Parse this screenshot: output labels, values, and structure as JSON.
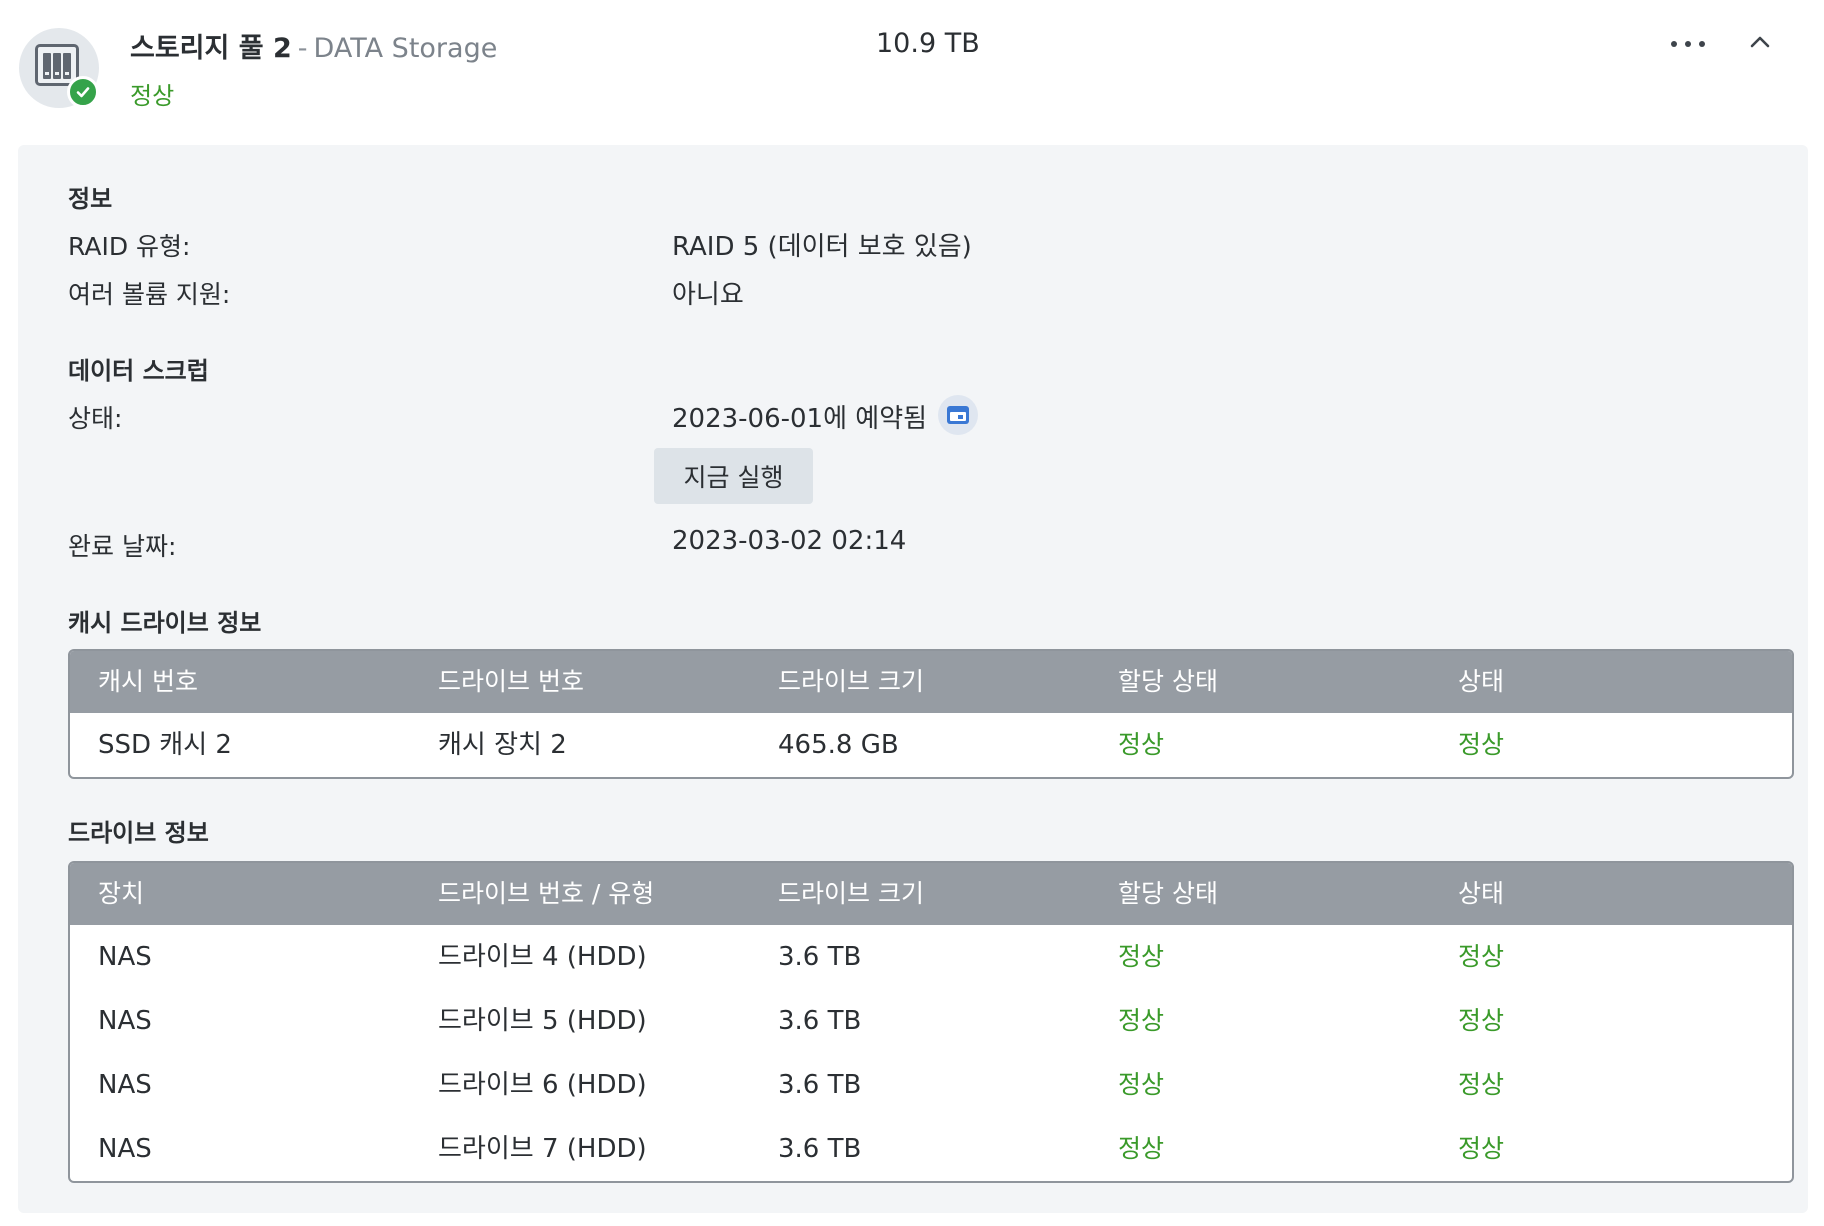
{
  "pool": {
    "name": "스토리지 풀 2",
    "separator": "-",
    "description": "DATA Storage",
    "status": "정상",
    "size": "10.9 TB",
    "icon": "nas-storage-icon",
    "status_icon": "check-circle-icon",
    "status_color": "#3a9a2a"
  },
  "info": {
    "heading": "정보",
    "raid_label": "RAID 유형:",
    "raid_value": "RAID 5 (데이터 보호 있음)",
    "multi_volume_label": "여러 볼륨 지원:",
    "multi_volume_value": "아니요"
  },
  "scrub": {
    "heading": "데이터 스크럽",
    "status_label": "상태:",
    "status_value": "2023-06-01에 예약됨",
    "run_now_label": "지금 실행",
    "completed_label": "완료 날짜:",
    "completed_value": "2023-03-02 02:14"
  },
  "cache_table": {
    "heading": "캐시 드라이브 정보",
    "columns": [
      "캐시 번호",
      "드라이브 번호",
      "드라이브 크기",
      "할당 상태",
      "상태"
    ],
    "rows": [
      [
        "SSD 캐시 2",
        "캐시 장치 2",
        "465.8 GB",
        "정상",
        "정상"
      ]
    ]
  },
  "drive_table": {
    "heading": "드라이브 정보",
    "columns": [
      "장치",
      "드라이브 번호 / 유형",
      "드라이브 크기",
      "할당 상태",
      "상태"
    ],
    "rows": [
      [
        "NAS",
        "드라이브 4 (HDD)",
        "3.6 TB",
        "정상",
        "정상"
      ],
      [
        "NAS",
        "드라이브 5 (HDD)",
        "3.6 TB",
        "정상",
        "정상"
      ],
      [
        "NAS",
        "드라이브 6 (HDD)",
        "3.6 TB",
        "정상",
        "정상"
      ],
      [
        "NAS",
        "드라이브 7 (HDD)",
        "3.6 TB",
        "정상",
        "정상"
      ]
    ]
  }
}
